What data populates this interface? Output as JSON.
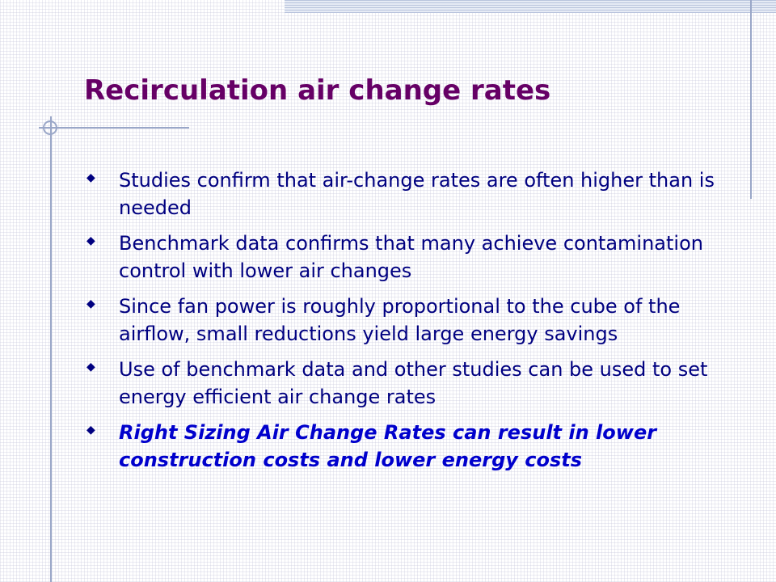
{
  "slide": {
    "title": "Recirculation air change rates",
    "bullets": [
      {
        "text": "Studies confirm that air-change rates are often higher than is needed",
        "emphasis": false
      },
      {
        "text": "Benchmark data confirms that many achieve contamination control with lower air changes",
        "emphasis": false
      },
      {
        "text": "Since fan power is roughly proportional to the cube of the airflow, small reductions yield large energy savings",
        "emphasis": false
      },
      {
        "text": "Use of benchmark data and other studies can be used to set energy efficient air change rates",
        "emphasis": false
      },
      {
        "text": "Right Sizing Air Change Rates can result in lower construction costs and lower energy costs",
        "emphasis": true
      }
    ],
    "bullet_icon": "diamond-icon"
  },
  "colors": {
    "title": "#660066",
    "body_text": "#000080",
    "emphasis_text": "#0000cc",
    "decor_lines": "#9aa7c8"
  }
}
